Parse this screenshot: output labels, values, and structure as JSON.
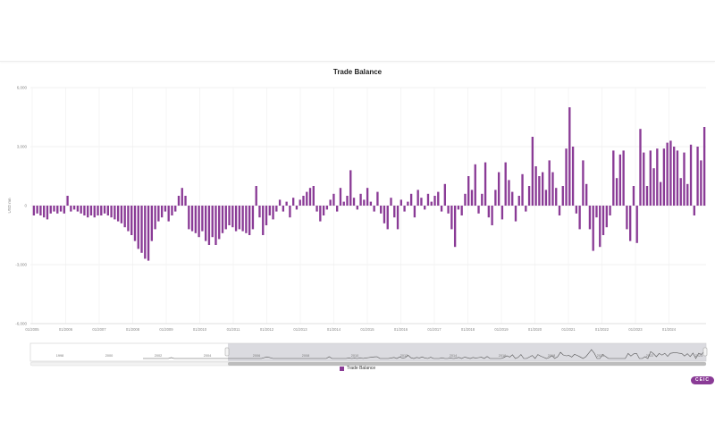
{
  "chart_data": {
    "type": "bar",
    "title": "Trade Balance",
    "ylabel": "USD mn",
    "xlabel": "",
    "ylim": [
      -6000,
      6000
    ],
    "y_ticks": [
      "-6,000",
      "-3,000",
      "0",
      "3,000",
      "6,000"
    ],
    "x_tick_labels": [
      "01/2005",
      "01/2006",
      "01/2007",
      "01/2008",
      "01/2009",
      "01/2010",
      "01/2011",
      "01/2012",
      "01/2013",
      "01/2014",
      "01/2015",
      "01/2016",
      "01/2017",
      "01/2018",
      "01/2019",
      "01/2020",
      "01/2021",
      "01/2022",
      "01/2023",
      "01/2024"
    ],
    "x_start": 2005.0,
    "series": [
      {
        "name": "Trade Balance",
        "color": "#8a3b96",
        "values": [
          -500,
          -400,
          -500,
          -600,
          -700,
          -400,
          -300,
          -400,
          -300,
          -400,
          500,
          -300,
          -200,
          -300,
          -400,
          -500,
          -600,
          -500,
          -600,
          -500,
          -500,
          -400,
          -500,
          -600,
          -700,
          -800,
          -900,
          -1100,
          -1300,
          -1500,
          -1800,
          -2200,
          -2400,
          -2700,
          -2800,
          -1800,
          -1200,
          -800,
          -600,
          -300,
          -800,
          -500,
          -300,
          500,
          900,
          500,
          -1200,
          -1300,
          -1400,
          -1600,
          -1300,
          -1800,
          -2000,
          -1600,
          -2000,
          -1700,
          -1400,
          -1200,
          -1000,
          -1100,
          -1300,
          -1200,
          -1300,
          -1400,
          -1500,
          -1200,
          1000,
          -600,
          -1500,
          -1000,
          -500,
          -700,
          -300,
          300,
          -300,
          200,
          -600,
          400,
          -200,
          300,
          500,
          700,
          900,
          1000,
          -300,
          -800,
          -500,
          -200,
          300,
          600,
          -300,
          900,
          200,
          500,
          1800,
          400,
          -200,
          600,
          300,
          900,
          200,
          -300,
          700,
          -400,
          -900,
          -1200,
          400,
          -600,
          -1200,
          300,
          -300,
          200,
          600,
          -600,
          800,
          400,
          -200,
          600,
          200,
          500,
          700,
          -300,
          1100,
          -400,
          -1200,
          -2100,
          -200,
          -500,
          600,
          1500,
          800,
          2100,
          -400,
          600,
          2200,
          -600,
          -1000,
          800,
          1700,
          -700,
          2200,
          1300,
          700,
          -800,
          500,
          1600,
          -300,
          1000,
          3500,
          2000,
          1500,
          1700,
          800,
          2300,
          1700,
          900,
          -500,
          1000,
          2900,
          5000,
          3000,
          -400,
          -1200,
          2300,
          1100,
          -1200,
          -2300,
          -600,
          -2100,
          -1500,
          -1100,
          -500,
          2800,
          1400,
          2600,
          2800,
          -1200,
          -1800,
          1000,
          -1900,
          3900,
          2700,
          1000,
          2800,
          1900,
          2900,
          1200,
          2900,
          3200,
          3300,
          3000,
          2800,
          1400,
          2700,
          1100,
          3100,
          -500,
          3000,
          2300,
          4000
        ]
      }
    ],
    "navigator_labels": [
      "1998",
      "2000",
      "2002",
      "2004",
      "2006",
      "2008",
      "2010",
      "2012",
      "2014",
      "2016",
      "2018",
      "2020",
      "2022",
      "2024"
    ]
  },
  "legend": {
    "label": "Trade Balance"
  },
  "logo": {
    "text": "CEIC"
  }
}
